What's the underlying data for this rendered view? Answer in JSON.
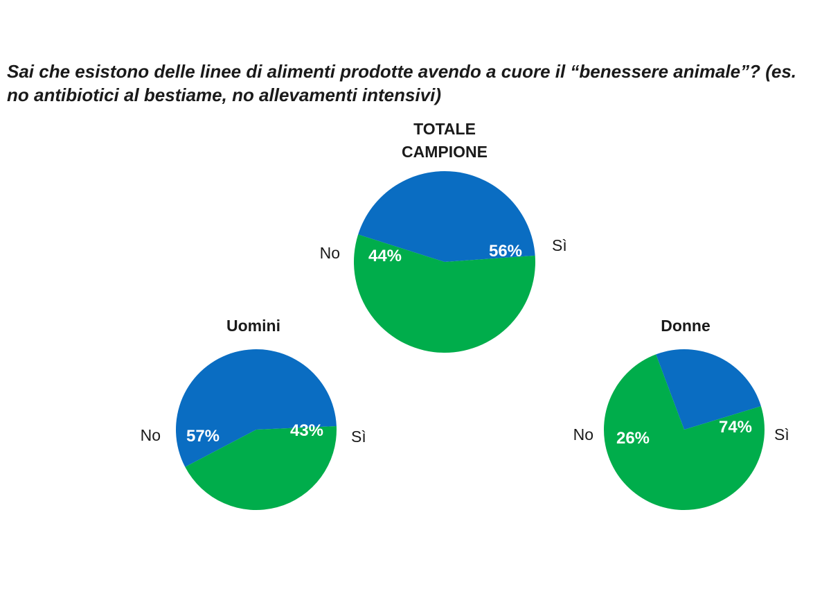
{
  "chart_data": {
    "title": "Sai che esistono delle linee di alimenti prodotte avendo a cuore il “benessere animale”? (es. no antibiotici al bestiame, no allevamenti intensivi)",
    "colors": {
      "no": "#0a6dc2",
      "si": "#00ad4b"
    },
    "charts": [
      {
        "type": "pie",
        "title_lines": [
          "TOTALE",
          "CAMPIONE"
        ],
        "slices": [
          {
            "key": "no",
            "label": "No",
            "value": 44,
            "value_label": "44%"
          },
          {
            "key": "si",
            "label": "Sì",
            "value": 56,
            "value_label": "56%"
          }
        ]
      },
      {
        "type": "pie",
        "title_lines": [
          "Uomini"
        ],
        "slices": [
          {
            "key": "no",
            "label": "No",
            "value": 57,
            "value_label": "57%"
          },
          {
            "key": "si",
            "label": "Sì",
            "value": 43,
            "value_label": "43%"
          }
        ]
      },
      {
        "type": "pie",
        "title_lines": [
          "Donne"
        ],
        "slices": [
          {
            "key": "no",
            "label": "No",
            "value": 26,
            "value_label": "26%"
          },
          {
            "key": "si",
            "label": "Sì",
            "value": 74,
            "value_label": "74%"
          }
        ]
      }
    ]
  }
}
